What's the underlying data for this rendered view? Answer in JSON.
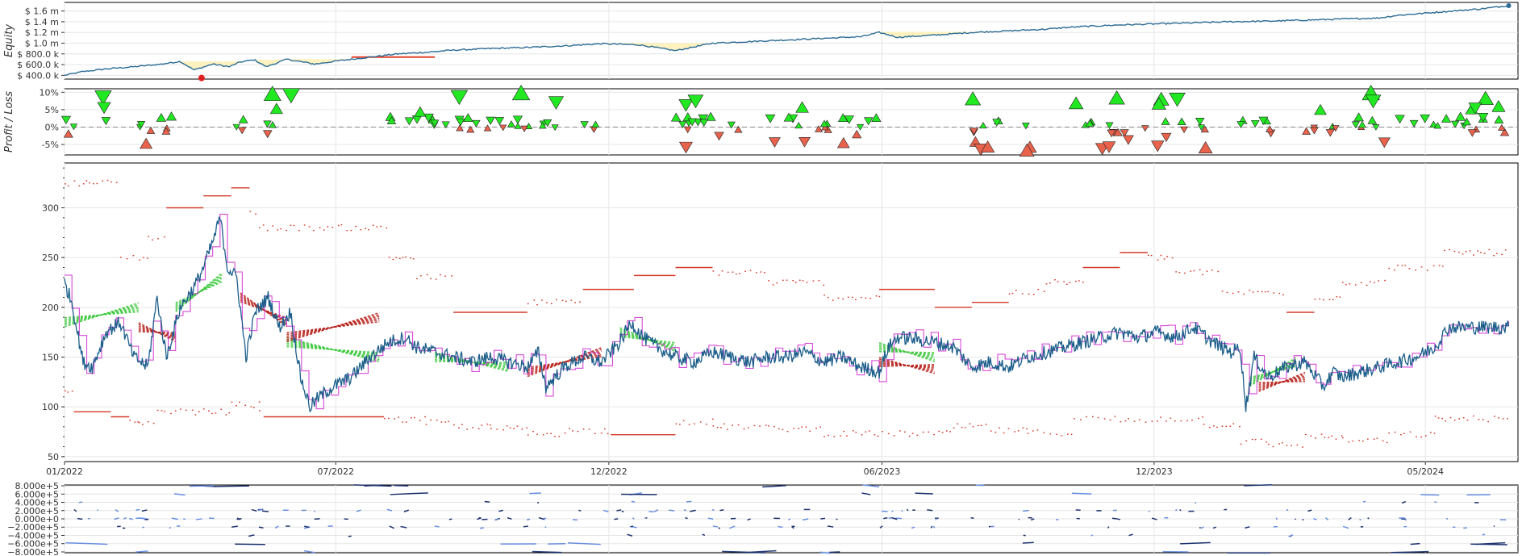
{
  "colors": {
    "equity_line": "#2c6c96",
    "drawdown_fill": "#fdf2c0",
    "drawdown_line": "#e0412a",
    "trade_up": "#22e822",
    "trade_down": "#e8624c",
    "price_line": "#1b5e8a",
    "bracket": "#d33a2a",
    "magenta": "#d02ad0",
    "green_dash": "#3cc83c",
    "red_dash": "#b8201a",
    "volume_light": "#6a90e0",
    "volume_dark": "#1e3470",
    "grid": "#e6e6e6",
    "zero_line": "#888888"
  },
  "chart_data": [
    {
      "type": "line",
      "name": "equity",
      "ylabel": "Equity",
      "ytick_labels": [
        "$ 400.0 k",
        "$ 600.0 k",
        "$ 800.0 k",
        "$ 1.0 m",
        "$ 1.2 m",
        "$ 1.4 m",
        "$ 1.6 m"
      ],
      "yticks": [
        400000,
        600000,
        800000,
        1000000,
        1200000,
        1400000,
        1600000
      ],
      "ylim": [
        330000,
        1760000
      ],
      "x": [
        0,
        20,
        45,
        75,
        105,
        125,
        140,
        160,
        178,
        190,
        205,
        218,
        240,
        270,
        300,
        330,
        360,
        390,
        420,
        460,
        500,
        540,
        580,
        620,
        660,
        700,
        740,
        780,
        820,
        860,
        880,
        900,
        940,
        980,
        1020,
        1060,
        1080,
        1100,
        1140,
        1180,
        1220,
        1260,
        1300,
        1340,
        1380,
        1420,
        1440,
        1470,
        1500,
        1530,
        1560
      ],
      "values": [
        400000,
        470000,
        520000,
        560000,
        610000,
        660000,
        500000,
        610000,
        560000,
        650000,
        690000,
        560000,
        700000,
        610000,
        680000,
        740000,
        800000,
        830000,
        870000,
        900000,
        920000,
        950000,
        990000,
        970000,
        860000,
        1000000,
        1030000,
        1060000,
        1090000,
        1120000,
        1200000,
        1110000,
        1150000,
        1200000,
        1230000,
        1260000,
        1290000,
        1310000,
        1340000,
        1360000,
        1380000,
        1400000,
        1410000,
        1430000,
        1450000,
        1470000,
        1520000,
        1560000,
        1600000,
        1640000,
        1700000
      ],
      "max_drawdown_marker": {
        "x": 148,
        "value": 350000
      },
      "final_marker": {
        "x": 1560,
        "value": 1700000
      }
    },
    {
      "type": "scatter",
      "name": "profit-loss",
      "ylabel": "Profit / Loss",
      "ytick_labels": [
        "-5%",
        "0%",
        "5%",
        "10%"
      ],
      "yticks": [
        -5,
        0,
        5,
        10
      ],
      "ylim": [
        -8,
        11
      ]
    },
    {
      "type": "line",
      "name": "price",
      "ytick_labels": [
        "50",
        "100",
        "150",
        "200",
        "250",
        "300"
      ],
      "yticks": [
        50,
        100,
        150,
        200,
        250,
        300
      ],
      "ylim": [
        45,
        345
      ],
      "xtick_labels": [
        "01/2022",
        "07/2022",
        "12/2022",
        "06/2023",
        "12/2023",
        "05/2024"
      ],
      "xtick_positions": [
        0,
        293,
        588,
        883,
        1177,
        1470
      ],
      "x": [
        0,
        8,
        20,
        30,
        45,
        60,
        75,
        90,
        100,
        110,
        125,
        140,
        150,
        160,
        168,
        176,
        186,
        196,
        206,
        220,
        232,
        244,
        255,
        265,
        275,
        290,
        310,
        330,
        350,
        368,
        380,
        400,
        420,
        440,
        460,
        480,
        500,
        512,
        520,
        540,
        560,
        580,
        600,
        612,
        625,
        640,
        660,
        680,
        700,
        720,
        740,
        760,
        780,
        800,
        820,
        840,
        860,
        880,
        890,
        900,
        920,
        940,
        960,
        980,
        1000,
        1020,
        1040,
        1060,
        1080,
        1100,
        1120,
        1140,
        1160,
        1180,
        1200,
        1220,
        1240,
        1260,
        1270,
        1276,
        1285,
        1300,
        1320,
        1340,
        1360,
        1370,
        1380,
        1400,
        1420,
        1440,
        1460,
        1480,
        1495
      ],
      "values": [
        225,
        205,
        145,
        140,
        175,
        185,
        150,
        140,
        210,
        150,
        200,
        220,
        240,
        265,
        290,
        240,
        230,
        150,
        195,
        210,
        180,
        195,
        130,
        100,
        110,
        120,
        130,
        150,
        165,
        170,
        160,
        155,
        150,
        145,
        150,
        145,
        140,
        155,
        120,
        140,
        150,
        145,
        165,
        185,
        170,
        160,
        150,
        145,
        155,
        150,
        145,
        150,
        150,
        155,
        145,
        150,
        140,
        135,
        160,
        170,
        168,
        165,
        160,
        140,
        145,
        140,
        150,
        155,
        160,
        165,
        170,
        175,
        170,
        175,
        170,
        180,
        165,
        155,
        160,
        100,
        150,
        130,
        140,
        145,
        120,
        135,
        130,
        135,
        140,
        145,
        150,
        160,
        180
      ]
    },
    {
      "type": "bar",
      "name": "volume",
      "ytick_labels": [
        "8.000e+5",
        "6.000e+5",
        "4.000e+5",
        "2.000e+5",
        "0.000e+0",
        "−2.000e+5",
        "−4.000e+5",
        "−6.000e+5",
        "−8.000e+5"
      ],
      "yticks": [
        800000,
        600000,
        400000,
        200000,
        0,
        -200000,
        -400000,
        -600000,
        -800000
      ],
      "ylim": [
        -820000,
        820000
      ]
    }
  ]
}
